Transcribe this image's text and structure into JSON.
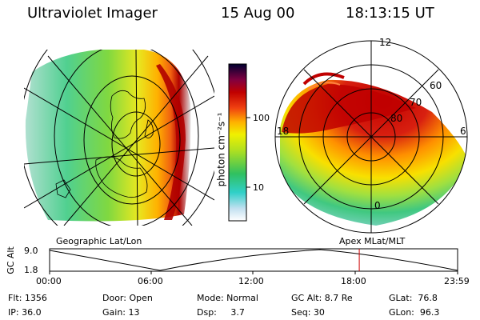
{
  "header": {
    "instrument": "Ultraviolet Imager",
    "date": "15 Aug 00",
    "time": "18:13:15 UT"
  },
  "colorbar": {
    "unit": "photon cm⁻²s⁻¹",
    "ticks": [
      "100",
      "10"
    ]
  },
  "left_panel": {
    "caption": "Geographic Lat/Lon"
  },
  "right_panel": {
    "caption": "Apex MLat/MLT",
    "mlt_labels": {
      "top": "12",
      "left": "18",
      "right": "6",
      "bottom": "0"
    },
    "lat_labels": [
      "60",
      "70",
      "80"
    ]
  },
  "altitude_plot": {
    "ylabel": "GC Alt",
    "yticks": [
      "9.0",
      "1.8"
    ],
    "xticks": [
      "00:00",
      "06:00",
      "12:00",
      "18:00",
      "23:59"
    ],
    "current_time_fraction": 0.759
  },
  "info": {
    "flt": "Flt: 1356",
    "ip": "IP: 36.0",
    "door": "Door: Open",
    "gain": "Gain: 13",
    "mode": "Mode: Normal",
    "dsp": "Dsp:     3.7",
    "gcalt": "GC Alt: 8.7 Re",
    "seq": "Seq: 30",
    "glat": "GLat:  76.8",
    "glon": "GLon:  96.3"
  },
  "colors": {
    "marker": "#cc0000",
    "aurora_peak": "#b00000"
  }
}
